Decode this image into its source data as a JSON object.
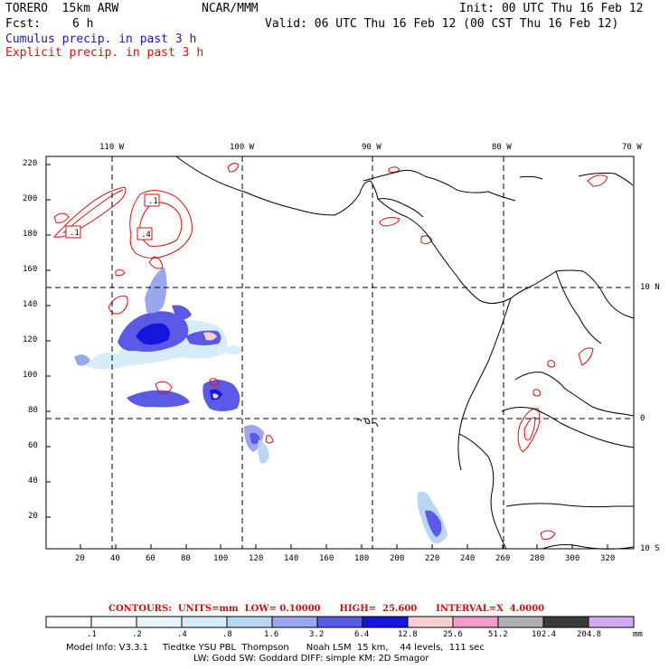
{
  "header": {
    "model": "TORERO  15km ARW",
    "org": "NCAR/MMM",
    "init": "Init: 00 UTC Thu 16 Feb 12",
    "fcst_label": "Fcst:",
    "fcst_value": "6 h",
    "valid": "Valid: 06 UTC Thu 16 Feb 12 (00 CST Thu 16 Feb 12)",
    "line1": "Cumulus precip. in past 3 h",
    "line2": "Explicit precip. in past 3 h",
    "line1_color": "#1a1aa6",
    "line2_color": "#d41010"
  },
  "map": {
    "lon_labels": [
      "110 W",
      "100 W",
      "90 W",
      "80 W",
      "70 W"
    ],
    "lat_labels": [
      "10 N",
      "0",
      "10 S"
    ],
    "y_ticks": [
      "220",
      "200",
      "180",
      "160",
      "140",
      "120",
      "100",
      "80",
      "60",
      "40",
      "20"
    ],
    "x_ticks": [
      "20",
      "40",
      "60",
      "80",
      "100",
      "120",
      "140",
      "160",
      "180",
      "200",
      "220",
      "240",
      "260",
      "280",
      "300",
      "320"
    ],
    "contour_labels": [
      ".1",
      ".1",
      ".4"
    ]
  },
  "contours_line": {
    "text": "CONTOURS:  UNITS=mm  LOW= 0.10000      HIGH=  25.600      INTERVAL=X  4.0000"
  },
  "colorbar": {
    "labels": [
      ".1",
      ".2",
      ".4",
      ".8",
      "1.6",
      "3.2",
      "6.4",
      "12.8",
      "25.6",
      "51.2",
      "102.4",
      "204.8"
    ],
    "unit": "mm",
    "colors": [
      "#ffffff",
      "#ffffff",
      "#e8f6fb",
      "#d6ecf7",
      "#b9d6f2",
      "#9aa6ee",
      "#5a5ae6",
      "#1515e0",
      "#f6d0d2",
      "#f29ac8",
      "#b0b0b0",
      "#3c3c3c",
      "#d4a8f0"
    ]
  },
  "footer": {
    "line1": "Model Info: V3.3.1     Tiedtke YSU PBL  Thompson      Noah LSM  15 km,    44 levels,  111 sec",
    "line2": "LW: Godd SW: Goddard DIFF: simple KM: 2D Smagor"
  }
}
